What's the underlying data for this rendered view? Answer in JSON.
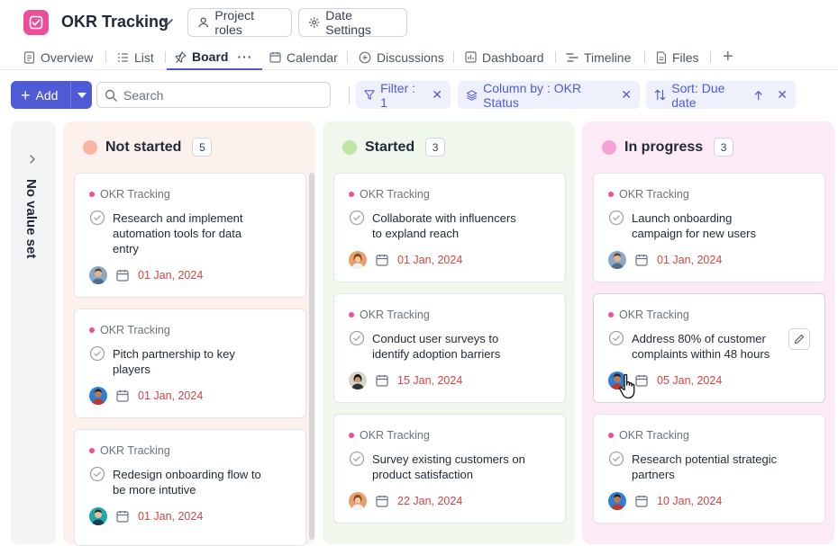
{
  "header": {
    "app_title": "OKR Tracking",
    "project_roles_label": "Project roles",
    "date_settings_label": "Date Settings",
    "accent_color": "#ec4f9a"
  },
  "tabs": [
    {
      "label": "Overview",
      "icon": "document-icon"
    },
    {
      "label": "List",
      "icon": "list-icon"
    },
    {
      "label": "Board",
      "icon": "pin-icon",
      "active": true
    },
    {
      "label": "Calendar",
      "icon": "calendar-icon"
    },
    {
      "label": "Discussions",
      "icon": "chat-icon"
    },
    {
      "label": "Dashboard",
      "icon": "chart-icon"
    },
    {
      "label": "Timeline",
      "icon": "timeline-icon"
    },
    {
      "label": "Files",
      "icon": "file-icon"
    }
  ],
  "toolbar": {
    "add_label": "Add",
    "search_placeholder": "Search",
    "filter_label": "Filter : 1",
    "column_by_label": "Column by : OKR Status",
    "sort_label": "Sort: Due date",
    "primary_color": "#4f5bd5"
  },
  "board": {
    "no_value_label": "No value set",
    "columns": [
      {
        "title": "Not started",
        "count": "5",
        "dot_color": "#f5b5a0",
        "bg_color": "#fdf1ee",
        "cards": [
          {
            "project": "OKR Tracking",
            "title": "Research and implement automation tools for data entry",
            "due": "01 Jan, 2024"
          },
          {
            "project": "OKR Tracking",
            "title": "Pitch partnership to key players",
            "due": "01 Jan, 2024"
          },
          {
            "project": "OKR Tracking",
            "title": "Redesign onboarding flow to be more intutive",
            "due": "01 Jan, 2024"
          }
        ]
      },
      {
        "title": "Started",
        "count": "3",
        "dot_color": "#bfe6a6",
        "bg_color": "#f0f7ec",
        "cards": [
          {
            "project": "OKR Tracking",
            "title": "Collaborate with influencers to expland reach",
            "due": "01 Jan, 2024"
          },
          {
            "project": "OKR Tracking",
            "title": "Conduct user surveys to identify adoption barriers",
            "due": "15 Jan, 2024"
          },
          {
            "project": "OKR Tracking",
            "title": "Survey existing customers on product satisfaction",
            "due": "22 Jan, 2024"
          }
        ]
      },
      {
        "title": "In progress",
        "count": "3",
        "dot_color": "#f5a3d6",
        "bg_color": "#fcebf6",
        "cards": [
          {
            "project": "OKR Tracking",
            "title": "Launch onboarding campaign for new users",
            "due": "01 Jan, 2024"
          },
          {
            "project": "OKR Tracking",
            "title": "Address 80% of customer complaints within 48 hours",
            "due": "05 Jan, 2024"
          },
          {
            "project": "OKR Tracking",
            "title": "Research potential strategic partners",
            "due": "10 Jan, 2024"
          }
        ]
      }
    ]
  }
}
